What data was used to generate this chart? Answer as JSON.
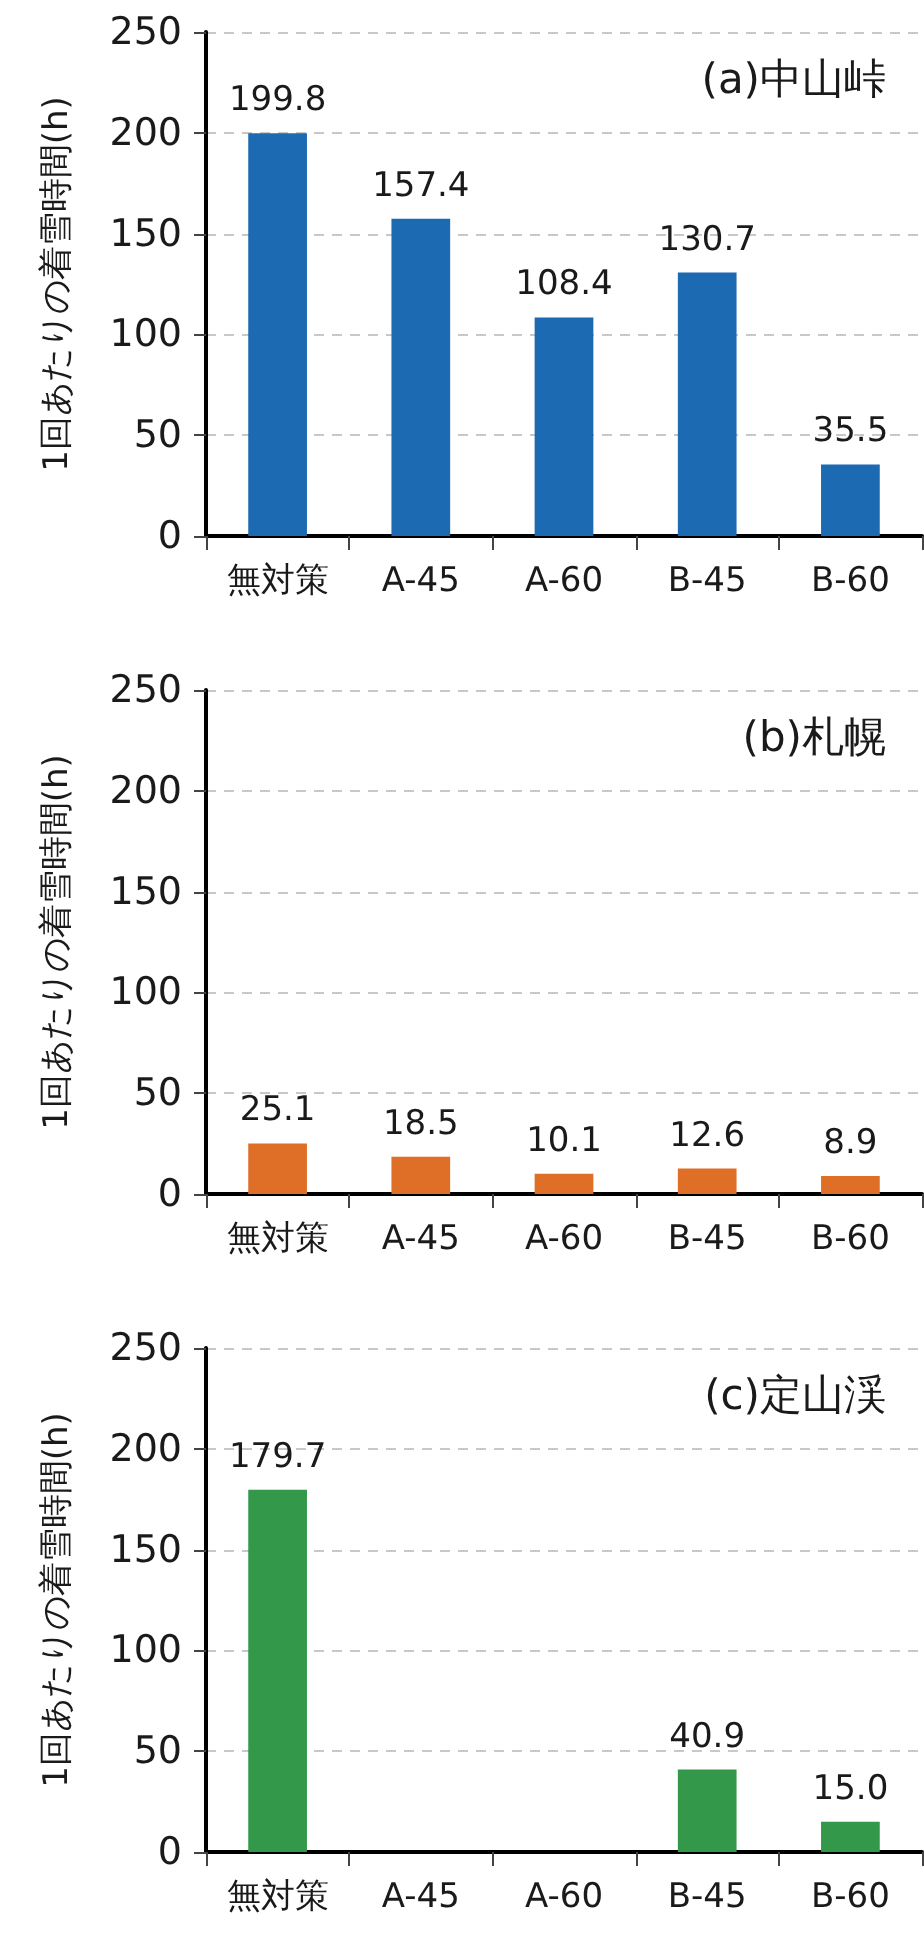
{
  "chart_data": [
    {
      "type": "bar",
      "title": "(a)中山峠",
      "ylabel": "1回あたりの着雪時間(h)",
      "categories": [
        "無対策",
        "A-45",
        "A-60",
        "B-45",
        "B-60"
      ],
      "values": [
        199.8,
        157.4,
        108.4,
        130.7,
        35.5
      ],
      "value_labels": [
        "199.8",
        "157.4",
        "108.4",
        "130.7",
        "35.5"
      ],
      "color": "#1b6ab2",
      "ylim": [
        0,
        250
      ],
      "yticks": [
        0,
        50,
        100,
        150,
        200,
        250
      ],
      "grid": "y"
    },
    {
      "type": "bar",
      "title": "(b)札幌",
      "ylabel": "1回あたりの着雪時間(h)",
      "categories": [
        "無対策",
        "A-45",
        "A-60",
        "B-45",
        "B-60"
      ],
      "values": [
        25.1,
        18.5,
        10.1,
        12.6,
        8.9
      ],
      "value_labels": [
        "25.1",
        "18.5",
        "10.1",
        "12.6",
        "8.9"
      ],
      "color": "#df6e27",
      "ylim": [
        0,
        250
      ],
      "yticks": [
        0,
        50,
        100,
        150,
        200,
        250
      ],
      "grid": "y"
    },
    {
      "type": "bar",
      "title": "(c)定山渓",
      "ylabel": "1回あたりの着雪時間(h)",
      "categories": [
        "無対策",
        "A-45",
        "A-60",
        "B-45",
        "B-60"
      ],
      "values": [
        179.7,
        null,
        null,
        40.9,
        15.0
      ],
      "value_labels": [
        "179.7",
        null,
        null,
        "40.9",
        "15.0"
      ],
      "color": "#34984a",
      "ylim": [
        0,
        250
      ],
      "yticks": [
        0,
        50,
        100,
        150,
        200,
        250
      ],
      "grid": "y"
    }
  ]
}
